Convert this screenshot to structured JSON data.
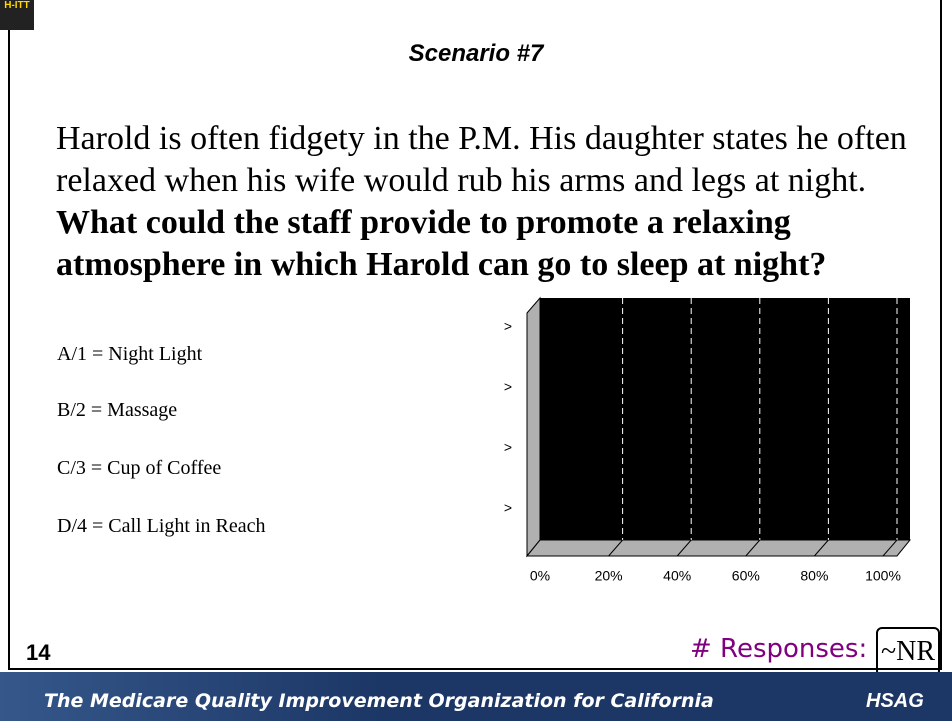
{
  "logo": "H-ITT",
  "title": "Scenario #7",
  "body": {
    "text": "Harold is often fidgety in the P.M. His daughter states he often relaxed when his wife would rub his arms and legs at night.",
    "question": "What could the staff provide to promote a relaxing atmosphere in which Harold can go to sleep at night?"
  },
  "options": [
    "A/1 = Night Light",
    "B/2 = Massage",
    "C/3 = Cup of Coffee",
    "D/4 = Call Light in Reach"
  ],
  "chart_data": {
    "type": "bar",
    "orientation": "horizontal",
    "categories": [
      ">",
      ">",
      ">",
      ">"
    ],
    "values": [
      0,
      0,
      0,
      0
    ],
    "color": "#000080",
    "xlim": [
      0,
      100
    ],
    "xticks": [
      {
        "value": 0,
        "label": "0%"
      },
      {
        "value": 20,
        "label": "20%"
      },
      {
        "value": 40,
        "label": "40%"
      },
      {
        "value": 60,
        "label": "60%"
      },
      {
        "value": 80,
        "label": "80%"
      },
      {
        "value": 100,
        "label": "100%"
      }
    ],
    "grid": true
  },
  "slide_number": "14",
  "responses_label": "# Responses:",
  "responses_value": "~NR",
  "footer": {
    "tagline": "The Medicare Quality Improvement Organization for California",
    "brand": "HSAG"
  }
}
